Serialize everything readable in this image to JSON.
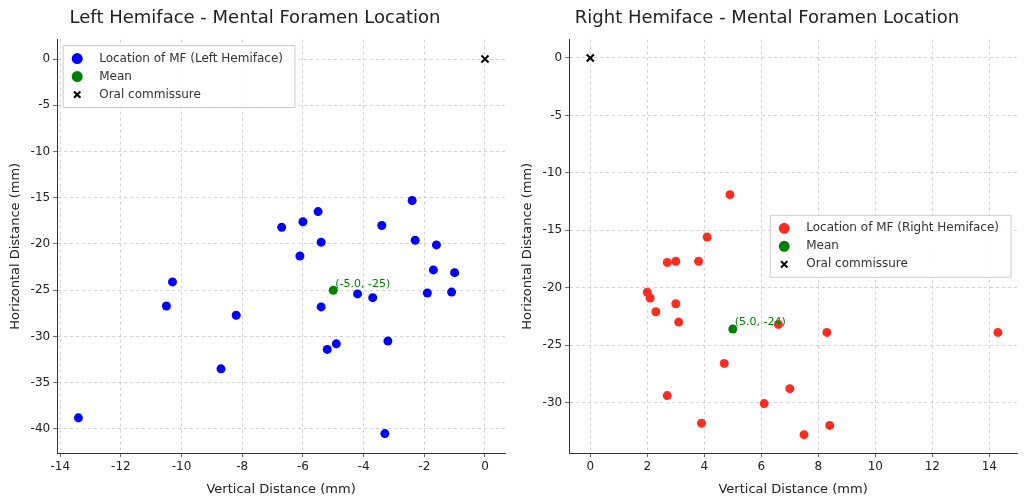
{
  "chart_data": [
    {
      "type": "scatter",
      "title": "Left Hemiface - Mental Foramen Location",
      "xlabel": "Vertical Distance (mm)",
      "ylabel": "Horizontal Distance (mm)",
      "xlim": [
        -14.1,
        0.66
      ],
      "xticks": [
        -14,
        -12,
        -10,
        -8,
        -6,
        -4,
        -2,
        0
      ],
      "ylim": [
        -42.6,
        2.1
      ],
      "yticks": [
        0,
        -5,
        -10,
        -15,
        -20,
        -25,
        -30,
        -35,
        -40
      ],
      "grid": true,
      "legend": "top left",
      "marker": "circle",
      "series": [
        {
          "name": "Location of MF (Left Hemiface)",
          "color": "#0000ff",
          "x": [
            -13.4,
            -10.3,
            -10.5,
            -8.2,
            -8.7,
            -6.7,
            -6.0,
            -5.5,
            -5.4,
            -6.1,
            -3.4,
            -2.4,
            -2.3,
            -1.6,
            -1.7,
            -1.0,
            -1.9,
            -1.1,
            -4.2,
            -3.7,
            -5.4,
            -4.9,
            -5.2,
            -3.2,
            -3.3
          ],
          "values": [
            -38.8,
            -24.1,
            -26.7,
            -27.7,
            -33.5,
            -18.2,
            -17.6,
            -16.5,
            -19.8,
            -21.3,
            -18.0,
            -15.3,
            -19.6,
            -20.1,
            -22.8,
            -23.1,
            -25.3,
            -25.2,
            -25.4,
            -25.8,
            -26.8,
            -30.8,
            -31.4,
            -30.5,
            -40.5
          ]
        },
        {
          "name": "Mean",
          "color": "#008000",
          "x": [
            -5.0
          ],
          "values": [
            -25
          ]
        },
        {
          "name": "Oral commissure",
          "color": "#000000",
          "marker": "cross",
          "x": [
            0
          ],
          "values": [
            0
          ]
        }
      ],
      "annotations": [
        {
          "text": "(-5.0, -25)",
          "x": -5.0,
          "y": -25
        }
      ]
    },
    {
      "type": "scatter",
      "title": "Right Hemiface - Mental Foramen Location",
      "xlabel": "Vertical Distance (mm)",
      "ylabel": "Horizontal Distance (mm)",
      "xlim": [
        -0.74,
        14.97
      ],
      "xticks": [
        0,
        2,
        4,
        6,
        8,
        10,
        12,
        14
      ],
      "ylim": [
        -34.4,
        1.6
      ],
      "yticks": [
        0,
        -5,
        -10,
        -15,
        -20,
        -25,
        -30
      ],
      "grid": true,
      "legend": "right",
      "marker": "circle",
      "series": [
        {
          "name": "Location of MF (Right Hemiface)",
          "color": "#ff2d1f",
          "x": [
            4.9,
            4.1,
            2.7,
            3.0,
            3.8,
            2.0,
            2.1,
            3.0,
            2.3,
            3.1,
            4.7,
            2.7,
            6.1,
            6.6,
            8.3,
            14.3,
            7.0,
            3.9,
            7.5,
            8.4
          ],
          "values": [
            -11.9,
            -15.6,
            -17.8,
            -17.7,
            -17.7,
            -20.4,
            -20.9,
            -21.4,
            -22.1,
            -23.0,
            -26.6,
            -29.4,
            -30.1,
            -23.2,
            -23.9,
            -23.9,
            -28.8,
            -31.8,
            -32.8,
            -32.0
          ]
        },
        {
          "name": "Mean",
          "color": "#008000",
          "x": [
            5.0
          ],
          "values": [
            -23.6
          ]
        },
        {
          "name": "Oral commissure",
          "color": "#000000",
          "marker": "cross",
          "x": [
            0
          ],
          "values": [
            0
          ]
        }
      ],
      "annotations": [
        {
          "text": "(5.0, -24)",
          "x": 5.0,
          "y": -23.6
        }
      ]
    }
  ]
}
